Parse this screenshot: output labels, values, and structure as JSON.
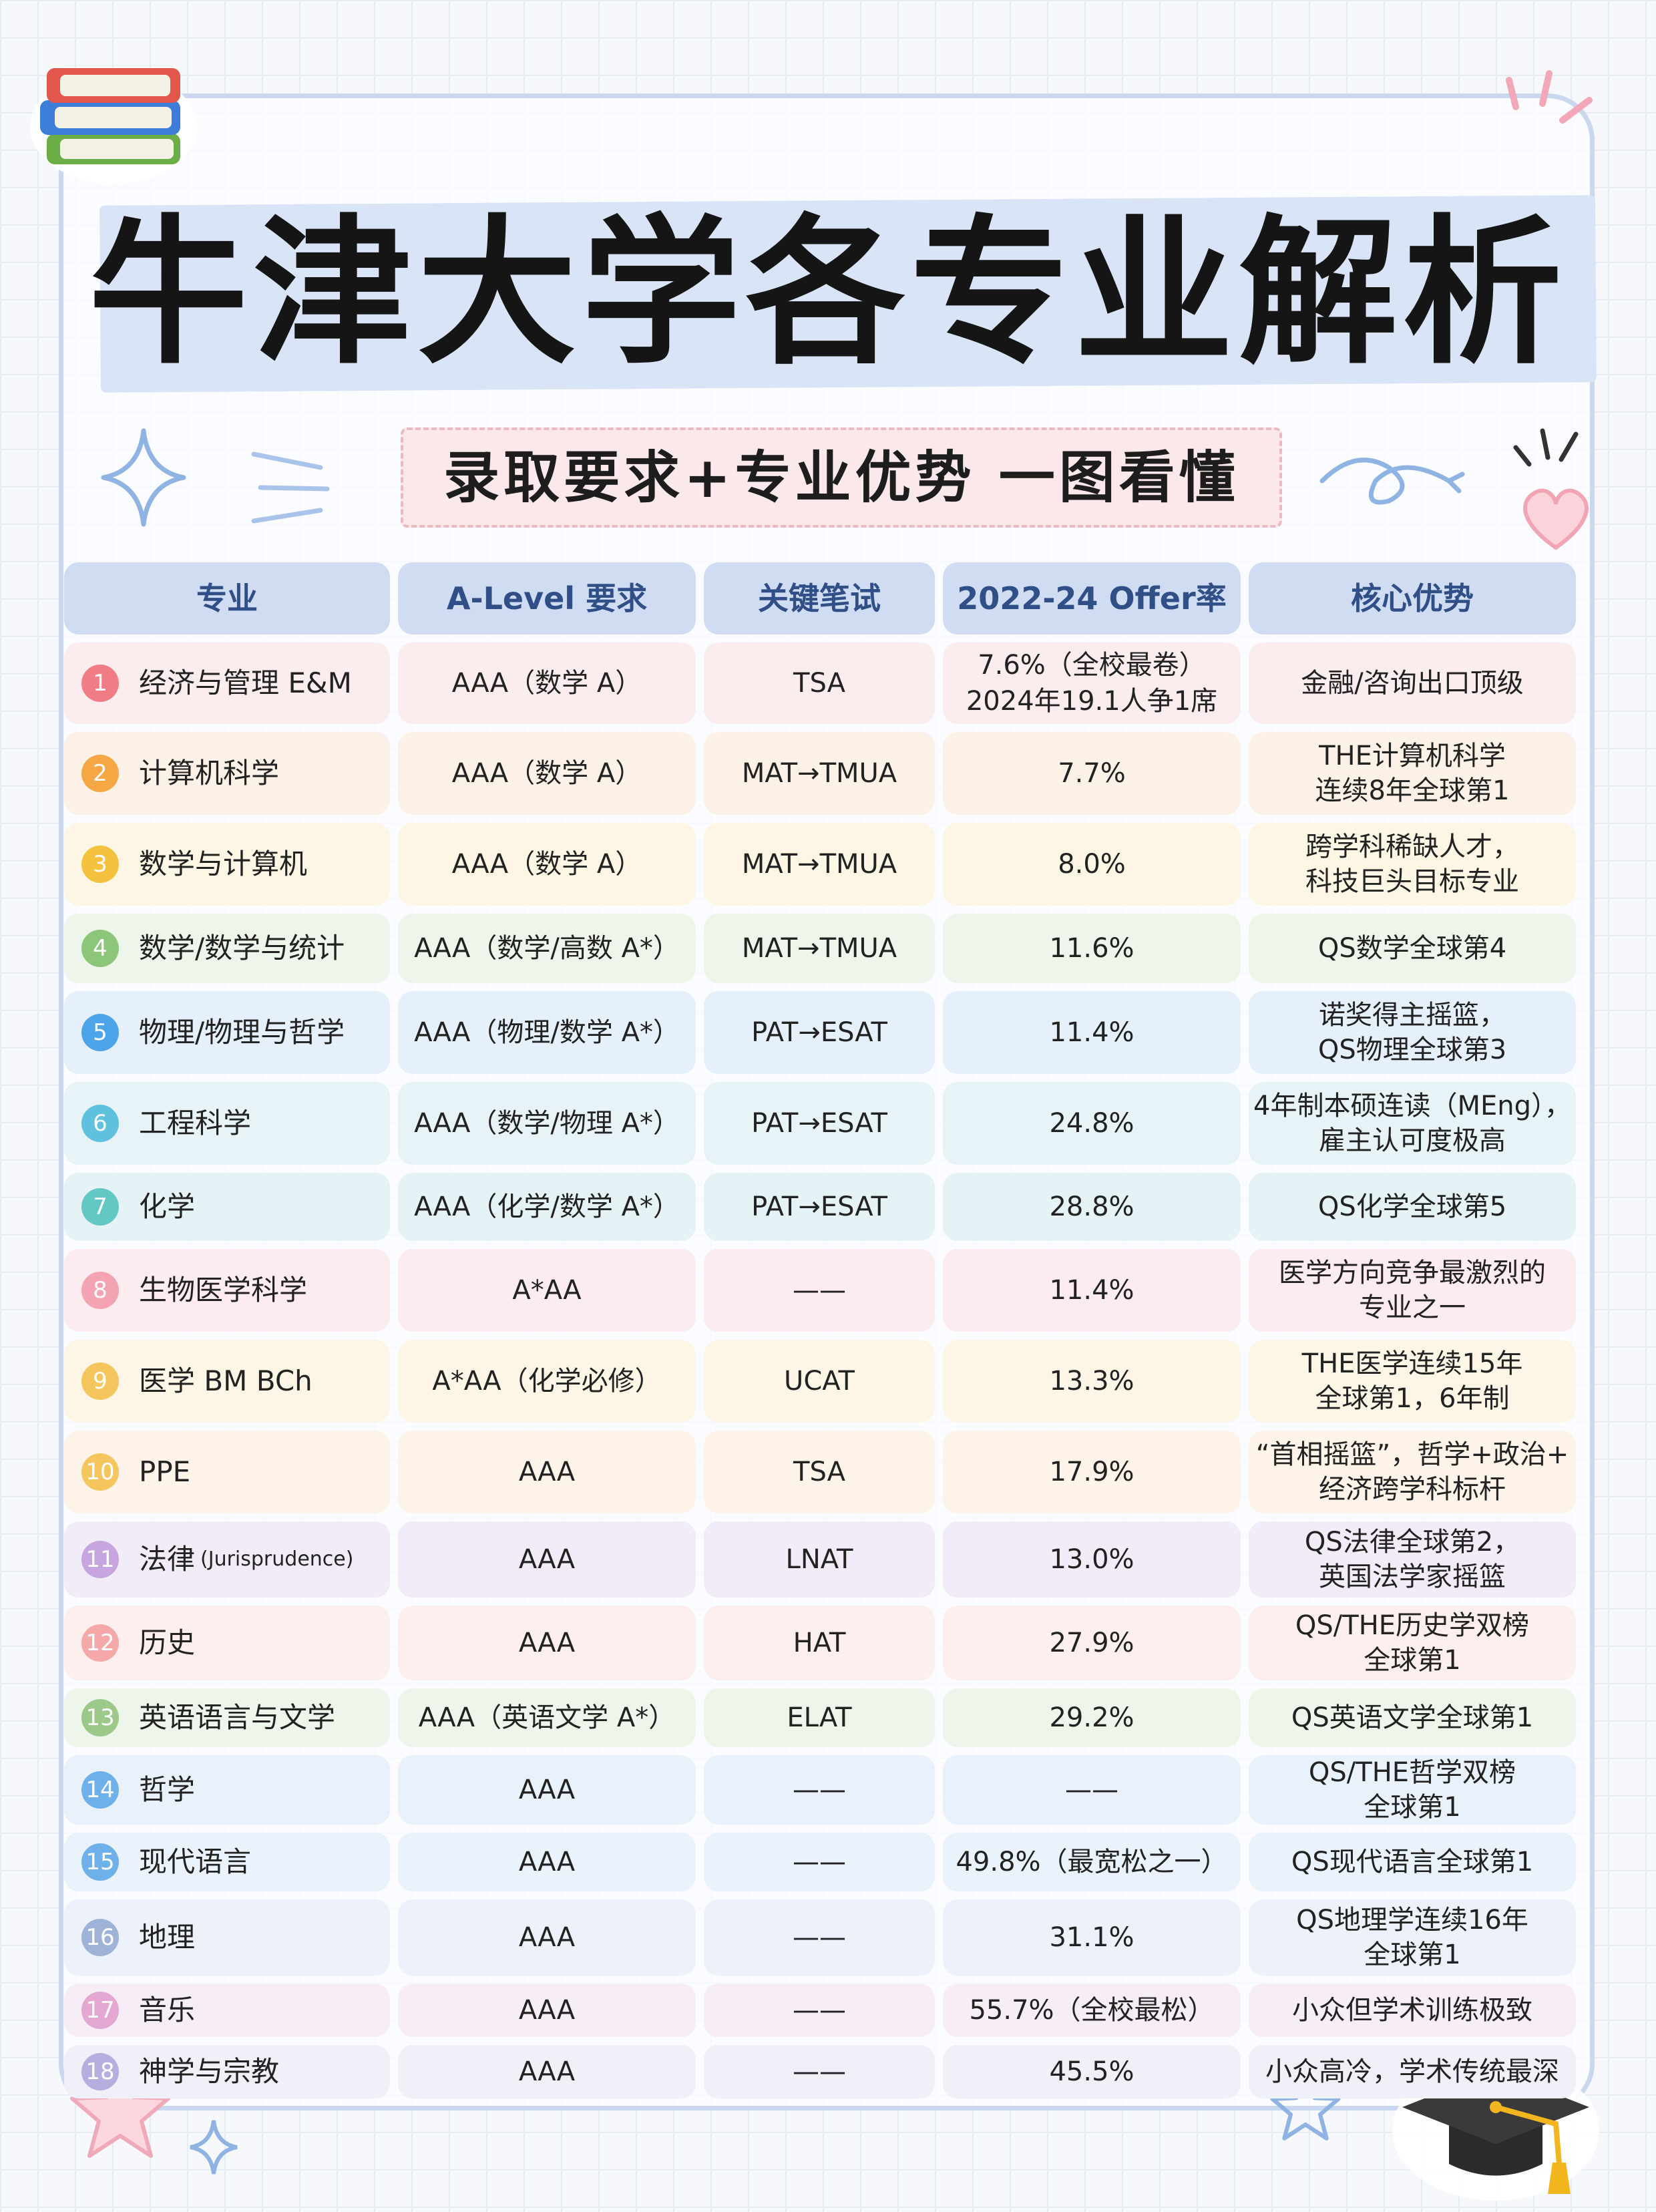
{
  "title": "牛津大学各专业解析",
  "subtitle": "录取要求+专业优势 一图看懂",
  "colors": {
    "frame": "#c9d8ee",
    "title_strip": "#d9e5f6",
    "header_bg": "#cfdcf1",
    "header_text": "#2f4f86",
    "subtitle_bg": "#fbe8ea"
  },
  "icons": [
    "books-icon",
    "sparkle-icon",
    "heart-icon",
    "star-icon",
    "graduation-cap-icon"
  ],
  "table": {
    "headers": [
      "专业",
      "A-Level 要求",
      "关键笔试",
      "2022-24 Offer率",
      "核心优势"
    ],
    "rows": [
      {
        "no": "1",
        "major": "经济与管理 E&M",
        "alevel": "AAA（数学 A）",
        "test": "TSA",
        "offer": [
          "7.6%（全校最卷）",
          "2024年19.1人争1席"
        ],
        "advantage": [
          "金融/咨询出口顶级"
        ],
        "color": "#f07d86",
        "bg": "#fbecee"
      },
      {
        "no": "2",
        "major": "计算机科学",
        "alevel": "AAA（数学 A）",
        "test": "MAT→TMUA",
        "offer": [
          "7.7%"
        ],
        "advantage": [
          "THE计算机科学",
          "连续8年全球第1"
        ],
        "color": "#f4a742",
        "bg": "#fcf1e6"
      },
      {
        "no": "3",
        "major": "数学与计算机",
        "alevel": "AAA（数学 A）",
        "test": "MAT→TMUA",
        "offer": [
          "8.0%"
        ],
        "advantage": [
          "跨学科稀缺人才，",
          "科技巨头目标专业"
        ],
        "color": "#f5c23f",
        "bg": "#fdf6e4"
      },
      {
        "no": "4",
        "major": "数学/数学与统计",
        "alevel": "AAA（数学/高数 A*）",
        "test": "MAT→TMUA",
        "offer": [
          "11.6%"
        ],
        "advantage": [
          "QS数学全球第4"
        ],
        "color": "#8cc678",
        "bg": "#eef5ea"
      },
      {
        "no": "5",
        "major": "物理/物理与哲学",
        "alevel": "AAA（物理/数学 A*）",
        "test": "PAT→ESAT",
        "offer": [
          "11.4%"
        ],
        "advantage": [
          "诺奖得主摇篮，",
          "QS物理全球第3"
        ],
        "color": "#4ea4e8",
        "bg": "#e6f0fb"
      },
      {
        "no": "6",
        "major": "工程科学",
        "alevel": "AAA（数学/物理 A*）",
        "test": "PAT→ESAT",
        "offer": [
          "24.8%"
        ],
        "advantage": [
          "4年制本硕连读（MEng），",
          "雇主认可度极高"
        ],
        "color": "#5fc1dd",
        "bg": "#e8f3f8"
      },
      {
        "no": "7",
        "major": "化学",
        "alevel": "AAA（化学/数学 A*）",
        "test": "PAT→ESAT",
        "offer": [
          "28.8%"
        ],
        "advantage": [
          "QS化学全球第5"
        ],
        "color": "#63c7c4",
        "bg": "#e6f3f6"
      },
      {
        "no": "8",
        "major": "生物医学科学",
        "alevel": "A*AA",
        "test": "——",
        "offer": [
          "11.4%"
        ],
        "advantage": [
          "医学方向竞争最激烈的",
          "专业之一"
        ],
        "color": "#f4a3b2",
        "bg": "#fcebef"
      },
      {
        "no": "9",
        "major": "医学 BM BCh",
        "alevel": "A*AA（化学必修）",
        "test": "UCAT",
        "offer": [
          "13.3%"
        ],
        "advantage": [
          "THE医学连续15年",
          "全球第1，6年制"
        ],
        "color": "#f5c65d",
        "bg": "#fdf5e6"
      },
      {
        "no": "10",
        "major": "PPE",
        "alevel": "AAA",
        "test": "TSA",
        "offer": [
          "17.9%"
        ],
        "advantage": [
          "“首相摇篮”，哲学+政治+",
          "经济跨学科标杆"
        ],
        "color": "#f5c65d",
        "bg": "#fdf3e9"
      },
      {
        "no": "11",
        "major": "法律",
        "major_note": "(Jurisprudence)",
        "alevel": "AAA",
        "test": "LNAT",
        "offer": [
          "13.0%"
        ],
        "advantage": [
          "QS法律全球第2，",
          "英国法学家摇篮"
        ],
        "color": "#c7a6e0",
        "bg": "#f1ecf8"
      },
      {
        "no": "12",
        "major": "历史",
        "alevel": "AAA",
        "test": "HAT",
        "offer": [
          "27.9%"
        ],
        "advantage": [
          "QS/THE历史学双榜",
          "全球第1"
        ],
        "color": "#f4a8a8",
        "bg": "#fcefed"
      },
      {
        "no": "13",
        "major": "英语语言与文学",
        "alevel": "AAA（英语文学 A*）",
        "test": "ELAT",
        "offer": [
          "29.2%"
        ],
        "advantage": [
          "QS英语文学全球第1"
        ],
        "color": "#9cc98a",
        "bg": "#eef5ea"
      },
      {
        "no": "14",
        "major": "哲学",
        "alevel": "AAA",
        "test": "——",
        "offer": [
          "——"
        ],
        "advantage": [
          "QS/THE哲学双榜",
          "全球第1"
        ],
        "color": "#6db0ea",
        "bg": "#e9f1fb"
      },
      {
        "no": "15",
        "major": "现代语言",
        "alevel": "AAA",
        "test": "——",
        "offer": [
          "49.8%（最宽松之一）"
        ],
        "advantage": [
          "QS现代语言全球第1"
        ],
        "color": "#6db0ea",
        "bg": "#eaf2fb"
      },
      {
        "no": "16",
        "major": "地理",
        "alevel": "AAA",
        "test": "——",
        "offer": [
          "31.1%"
        ],
        "advantage": [
          "QS地理学连续16年",
          "全球第1"
        ],
        "color": "#9fb3d8",
        "bg": "#edf1f9"
      },
      {
        "no": "17",
        "major": "音乐",
        "alevel": "AAA",
        "test": "——",
        "offer": [
          "55.7%（全校最松）"
        ],
        "advantage": [
          "小众但学术训练极致"
        ],
        "color": "#e4a7d2",
        "bg": "#f7edf6"
      },
      {
        "no": "18",
        "major": "神学与宗教",
        "alevel": "AAA",
        "test": "——",
        "offer": [
          "45.5%"
        ],
        "advantage": [
          "小众高冷，学术传统最深"
        ],
        "color": "#b7aee0",
        "bg": "#eff0f8"
      }
    ]
  }
}
